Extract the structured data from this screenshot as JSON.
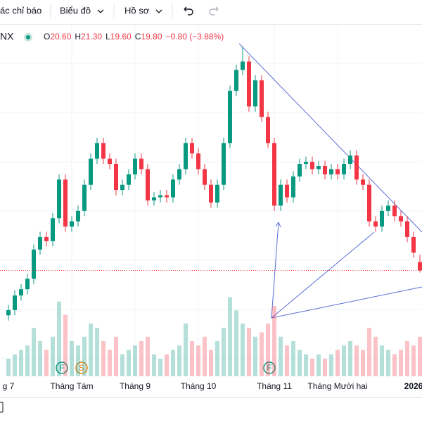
{
  "toolbar": {
    "indicators": "ác chỉ báo",
    "chart": "Biểu đồ",
    "profile": "Hồ sơ"
  },
  "chart_data": {
    "type": "candlestick",
    "symbol": "NX",
    "legend": [
      {
        "key": "O",
        "value": "20.60"
      },
      {
        "key": "H",
        "value": "21.30"
      },
      {
        "key": "L",
        "value": "19.60"
      },
      {
        "key": "C",
        "value": "19.80"
      }
    ],
    "change": "−0.80 (−3.88%)",
    "categories": [
      "g 7",
      null,
      null,
      null,
      null,
      null,
      null,
      null,
      null,
      null,
      "Tháng Tám",
      null,
      null,
      null,
      null,
      null,
      null,
      null,
      null,
      null,
      "Tháng 9",
      null,
      null,
      null,
      null,
      null,
      null,
      null,
      null,
      null,
      "Tháng 10",
      null,
      null,
      null,
      null,
      null,
      null,
      null,
      null,
      null,
      null,
      null,
      "Tháng 11",
      null,
      null,
      null,
      null,
      null,
      null,
      null,
      null,
      null,
      "Tháng Mười hai",
      null,
      null,
      null,
      null,
      null,
      null,
      null,
      null,
      null,
      null,
      null,
      "2026",
      null
    ],
    "open": [
      15.5,
      16.0,
      17.4,
      18.0,
      19.0,
      21.8,
      23.0,
      22.6,
      24.8,
      28.5,
      24.0,
      24.5,
      25.5,
      28.0,
      30.5,
      32.0,
      30.5,
      30.0,
      27.5,
      28.0,
      29.0,
      30.5,
      29.5,
      26.5,
      26.8,
      27.0,
      26.8,
      28.5,
      29.5,
      32.0,
      31.0,
      29.5,
      28.0,
      26.3,
      28.0,
      32.0,
      37.0,
      39.0,
      39.8,
      35.5,
      38.0,
      34.5,
      32.0,
      26.0,
      28.0,
      26.8,
      28.8,
      30.0,
      30.2,
      29.5,
      29.8,
      29.0,
      29.5,
      29.0,
      30.0,
      30.8,
      28.5,
      28.0,
      24.5,
      24.0,
      25.5,
      26.0,
      25.0,
      24.5,
      23.0,
      20.6
    ],
    "high": [
      16.5,
      17.9,
      18.5,
      19.5,
      22.3,
      23.5,
      23.5,
      25.3,
      29.0,
      29.0,
      25.0,
      26.0,
      28.5,
      31.0,
      32.5,
      32.5,
      31.0,
      30.5,
      28.5,
      29.5,
      31.0,
      31.0,
      30.0,
      27.3,
      27.5,
      27.5,
      29.0,
      30.0,
      32.5,
      32.5,
      31.5,
      30.0,
      28.5,
      28.5,
      32.5,
      37.5,
      39.5,
      41.3,
      40.3,
      38.5,
      38.5,
      35.0,
      32.5,
      28.5,
      28.5,
      29.3,
      30.5,
      30.7,
      30.7,
      30.3,
      30.3,
      30.0,
      30.0,
      30.5,
      31.3,
      31.3,
      29.0,
      28.5,
      25.0,
      26.0,
      26.5,
      26.5,
      25.5,
      25.0,
      23.5,
      21.3
    ],
    "low": [
      15.0,
      15.5,
      16.9,
      17.5,
      18.5,
      21.3,
      22.1,
      22.1,
      24.3,
      23.5,
      23.5,
      24.0,
      25.0,
      27.5,
      30.0,
      30.0,
      29.5,
      27.0,
      27.0,
      27.5,
      28.5,
      29.0,
      26.0,
      26.0,
      26.3,
      26.3,
      26.3,
      28.0,
      29.0,
      30.5,
      29.0,
      27.5,
      25.8,
      25.8,
      27.5,
      31.5,
      36.5,
      38.5,
      35.0,
      35.0,
      34.0,
      31.5,
      25.5,
      25.5,
      26.3,
      26.3,
      28.3,
      29.5,
      29.0,
      29.0,
      28.5,
      28.5,
      28.5,
      28.5,
      29.5,
      28.0,
      27.5,
      24.0,
      23.5,
      23.5,
      25.0,
      24.5,
      24.0,
      22.5,
      21.0,
      19.6
    ],
    "close": [
      16.0,
      17.4,
      18.0,
      19.0,
      21.8,
      23.0,
      22.6,
      24.8,
      28.5,
      24.0,
      24.5,
      25.5,
      28.0,
      30.5,
      32.0,
      30.5,
      30.0,
      27.5,
      28.0,
      29.0,
      30.5,
      29.5,
      26.5,
      26.8,
      27.0,
      26.8,
      28.5,
      29.5,
      32.0,
      31.0,
      29.5,
      28.0,
      26.3,
      28.0,
      32.0,
      37.0,
      39.0,
      39.8,
      35.5,
      38.0,
      34.5,
      32.0,
      26.0,
      28.0,
      26.8,
      28.8,
      30.0,
      30.2,
      29.5,
      29.8,
      29.0,
      29.5,
      29.0,
      30.0,
      30.8,
      28.5,
      28.0,
      24.5,
      24.0,
      25.5,
      26.0,
      25.0,
      24.5,
      23.0,
      21.5,
      19.8
    ],
    "volume": [
      20,
      25,
      30,
      35,
      55,
      40,
      30,
      45,
      85,
      70,
      40,
      35,
      45,
      60,
      55,
      40,
      30,
      45,
      25,
      30,
      35,
      40,
      45,
      25,
      20,
      25,
      30,
      35,
      60,
      40,
      35,
      45,
      30,
      40,
      55,
      90,
      75,
      60,
      55,
      45,
      50,
      60,
      80,
      45,
      35,
      40,
      30,
      25,
      20,
      25,
      20,
      25,
      30,
      35,
      40,
      35,
      30,
      55,
      45,
      35,
      30,
      25,
      30,
      40,
      35,
      45
    ],
    "ylim": [
      10,
      43
    ],
    "volume_ylim": [
      0,
      100
    ],
    "up_color": "#089981",
    "down_color": "#f23645",
    "events": [
      {
        "label": "F"
      },
      {
        "label": "S"
      },
      {
        "label": "F"
      }
    ]
  }
}
